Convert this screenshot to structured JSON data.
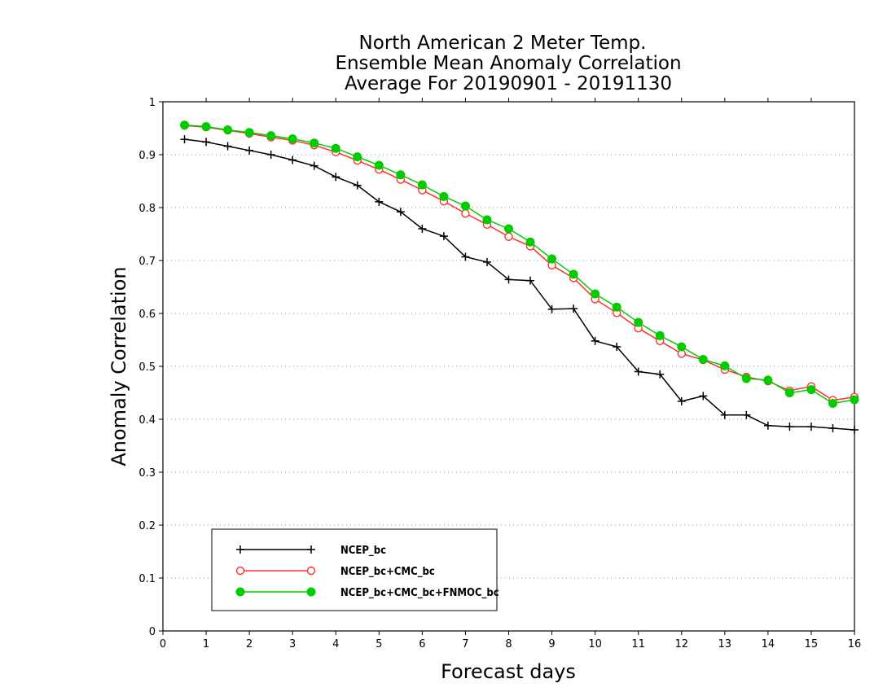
{
  "chart_data": {
    "type": "line",
    "title": [
      "North American 2 Meter Temp.",
      "Ensemble Mean Anomaly Correlation",
      "Average For 20190901 - 20191130"
    ],
    "xlabel": "Forecast days",
    "ylabel": "Anomaly Correlation",
    "xlim": [
      0,
      16
    ],
    "ylim": [
      0,
      1
    ],
    "xticks": [
      "0",
      "1",
      "2",
      "3",
      "4",
      "5",
      "6",
      "7",
      "8",
      "9",
      "10",
      "11",
      "12",
      "13",
      "14",
      "15",
      "16"
    ],
    "yticks": [
      "0",
      "0.1",
      "0.2",
      "0.3",
      "0.4",
      "0.5",
      "0.6",
      "0.7",
      "0.8",
      "0.9",
      "1"
    ],
    "grid": "horizontal dotted",
    "legend_position": "bottom-left",
    "x": [
      0.5,
      1,
      1.5,
      2,
      2.5,
      3,
      3.5,
      4,
      4.5,
      5,
      5.5,
      6,
      6.5,
      7,
      7.5,
      8,
      8.5,
      9,
      9.5,
      10,
      10.5,
      11,
      11.5,
      12,
      12.5,
      13,
      13.5,
      14,
      14.5,
      15,
      15.5,
      16
    ],
    "series": [
      {
        "name": "NCEP_bc",
        "color": "#000000",
        "marker": "plus",
        "values": [
          0.929,
          0.924,
          0.916,
          0.908,
          0.9,
          0.89,
          0.879,
          0.858,
          0.842,
          0.811,
          0.792,
          0.76,
          0.746,
          0.707,
          0.697,
          0.664,
          0.662,
          0.608,
          0.609,
          0.548,
          0.537,
          0.49,
          0.485,
          0.434,
          0.444,
          0.408,
          0.408,
          0.388,
          0.386,
          0.386,
          0.383,
          0.38
        ]
      },
      {
        "name": "NCEP_bc+CMC_bc",
        "color": "#ff3030",
        "marker": "open-circle",
        "values": [
          0.955,
          0.952,
          0.946,
          0.94,
          0.933,
          0.927,
          0.918,
          0.905,
          0.889,
          0.872,
          0.853,
          0.833,
          0.812,
          0.789,
          0.768,
          0.745,
          0.727,
          0.691,
          0.667,
          0.627,
          0.601,
          0.572,
          0.548,
          0.524,
          0.512,
          0.494,
          0.48,
          0.472,
          0.454,
          0.462,
          0.436,
          0.442
        ]
      },
      {
        "name": "NCEP_bc+CMC_bc+FNMOC_bc",
        "color": "#00cc00",
        "marker": "filled-circle",
        "values": [
          0.956,
          0.953,
          0.947,
          0.942,
          0.936,
          0.93,
          0.922,
          0.912,
          0.896,
          0.88,
          0.862,
          0.843,
          0.821,
          0.803,
          0.777,
          0.76,
          0.735,
          0.703,
          0.674,
          0.637,
          0.612,
          0.583,
          0.558,
          0.537,
          0.513,
          0.501,
          0.477,
          0.474,
          0.45,
          0.456,
          0.43,
          0.437
        ]
      }
    ]
  }
}
